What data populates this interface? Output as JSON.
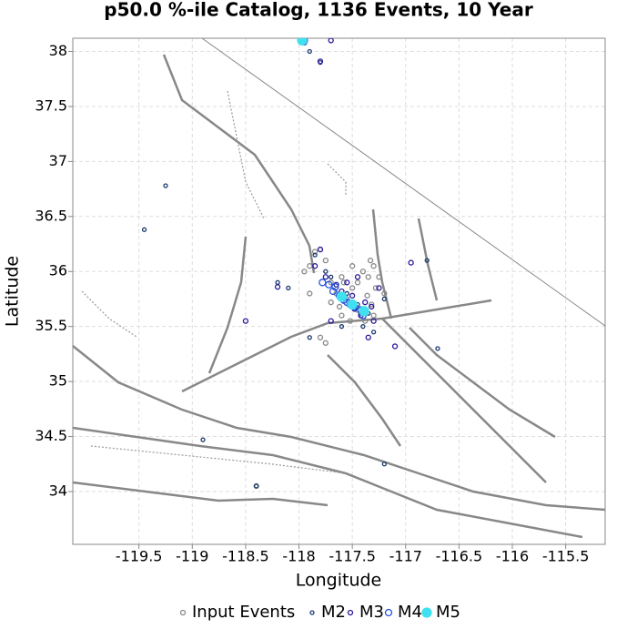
{
  "chart_data": {
    "type": "scatter",
    "title": "p50.0 %-ile Catalog, 1136 Events, 10 Year",
    "xlabel": "Longitude",
    "ylabel": "Latitude",
    "xlim": [
      -120.12,
      -115.13
    ],
    "ylim": [
      33.52,
      38.12
    ],
    "xticks": [
      -119.5,
      -119,
      -118.5,
      -118,
      -117.5,
      -117,
      -116.5,
      -116,
      -115.5
    ],
    "yticks": [
      34,
      34.5,
      35,
      35.5,
      36,
      36.5,
      37,
      37.5,
      38
    ],
    "grid": true,
    "legend": "bottom",
    "series": [
      {
        "name": "Input Events",
        "color": "#888888",
        "filled": false,
        "x": [
          -117.75,
          -117.8,
          -117.85,
          -117.6,
          -117.5,
          -117.45,
          -117.35,
          -117.3,
          -117.4,
          -117.55,
          -117.65,
          -117.7,
          -117.42,
          -117.38,
          -117.32,
          -117.28,
          -117.25,
          -117.9,
          -117.95,
          -117.6,
          -117.8,
          -117.75,
          -117.2,
          -117.33,
          -117.5,
          -117.48,
          -117.62,
          -117.7,
          -117.9,
          -118.4,
          -117.3,
          -117.36,
          -117.45,
          -117.52,
          -117.58
        ],
        "values": [
          36.1,
          36.2,
          36.18,
          35.95,
          35.85,
          35.9,
          35.95,
          36.05,
          36.0,
          35.75,
          35.8,
          35.9,
          35.62,
          35.55,
          35.7,
          35.85,
          35.95,
          36.05,
          36.0,
          35.6,
          35.4,
          35.35,
          35.8,
          36.1,
          36.05,
          35.7,
          35.68,
          35.72,
          35.8,
          34.05,
          35.6,
          35.78,
          35.65,
          35.55,
          35.9
        ]
      },
      {
        "name": "M2",
        "color": "#1a3a6e",
        "filled": false,
        "x": [
          -117.95,
          -117.8,
          -117.9,
          -119.45,
          -119.25,
          -118.2,
          -118.1,
          -117.85,
          -117.7,
          -117.55,
          -117.45,
          -117.35,
          -117.4,
          -117.3,
          -117.2,
          -116.8,
          -116.7,
          -118.4,
          -117.2,
          -117.9,
          -118.9,
          -117.6,
          -117.75
        ],
        "values": [
          38.1,
          37.9,
          38.0,
          36.38,
          36.78,
          35.9,
          35.85,
          36.15,
          35.95,
          35.8,
          35.7,
          35.62,
          35.5,
          35.45,
          35.75,
          36.1,
          35.3,
          34.05,
          34.25,
          35.4,
          34.47,
          35.5,
          36.0
        ]
      },
      {
        "name": "M3",
        "color": "#2a1a9a",
        "filled": false,
        "x": [
          -117.95,
          -117.7,
          -117.8,
          -118.5,
          -118.2,
          -117.85,
          -117.8,
          -117.75,
          -117.65,
          -117.6,
          -117.55,
          -117.5,
          -117.48,
          -117.42,
          -117.38,
          -117.32,
          -117.3,
          -117.35,
          -117.1,
          -116.95,
          -117.7,
          -117.25,
          -117.45
        ],
        "values": [
          38.08,
          38.1,
          37.91,
          35.55,
          35.86,
          36.05,
          36.2,
          35.95,
          35.88,
          35.82,
          35.9,
          35.78,
          35.66,
          35.6,
          35.72,
          35.68,
          35.55,
          35.4,
          35.32,
          36.08,
          35.55,
          35.85,
          35.95
        ]
      },
      {
        "name": "M4",
        "color": "#2050e0",
        "filled": false,
        "x": [
          -117.95,
          -117.78,
          -117.72,
          -117.68,
          -117.62,
          -117.58,
          -117.52,
          -117.48,
          -117.42,
          -117.4,
          -117.66,
          -117.55
        ],
        "values": [
          38.1,
          35.9,
          35.88,
          35.82,
          35.78,
          35.74,
          35.7,
          35.68,
          35.65,
          35.6,
          35.86,
          35.72
        ]
      },
      {
        "name": "M5",
        "color": "#40e0f0",
        "filled": true,
        "x": [
          -117.97,
          -117.6,
          -117.5,
          -117.39
        ],
        "values": [
          38.1,
          35.77,
          35.7,
          35.64
        ]
      }
    ]
  }
}
